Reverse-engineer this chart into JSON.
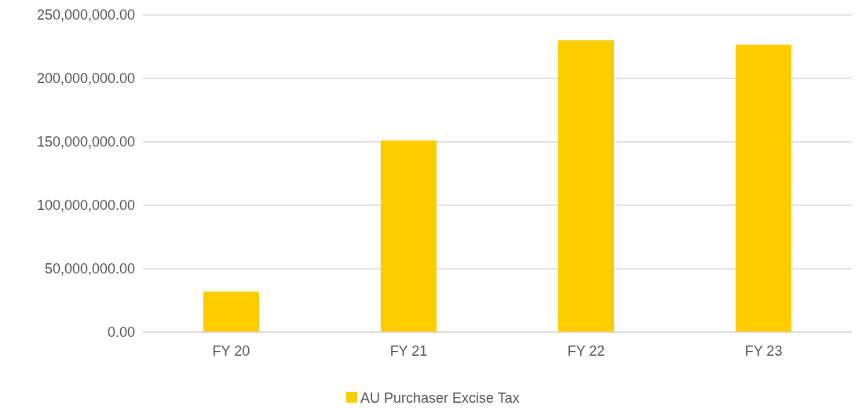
{
  "chart_data": {
    "type": "bar",
    "categories": [
      "FY 20",
      "FY 21",
      "FY 22",
      "FY 23"
    ],
    "series": [
      {
        "name": "AU Purchaser Excise Tax",
        "color": "#ffcc00",
        "values": [
          32000000,
          151000000,
          230000000,
          226500000
        ]
      }
    ],
    "ylim": [
      0,
      250000000
    ],
    "yticks": [
      {
        "value": 0,
        "label": "0.00"
      },
      {
        "value": 50000000,
        "label": "50,000,000.00"
      },
      {
        "value": 100000000,
        "label": "100,000,000.00"
      },
      {
        "value": 150000000,
        "label": "150,000,000.00"
      },
      {
        "value": 200000000,
        "label": "200,000,000.00"
      },
      {
        "value": 250000000,
        "label": "250,000,000.00"
      }
    ],
    "grid": "y",
    "legend": "bottom"
  }
}
